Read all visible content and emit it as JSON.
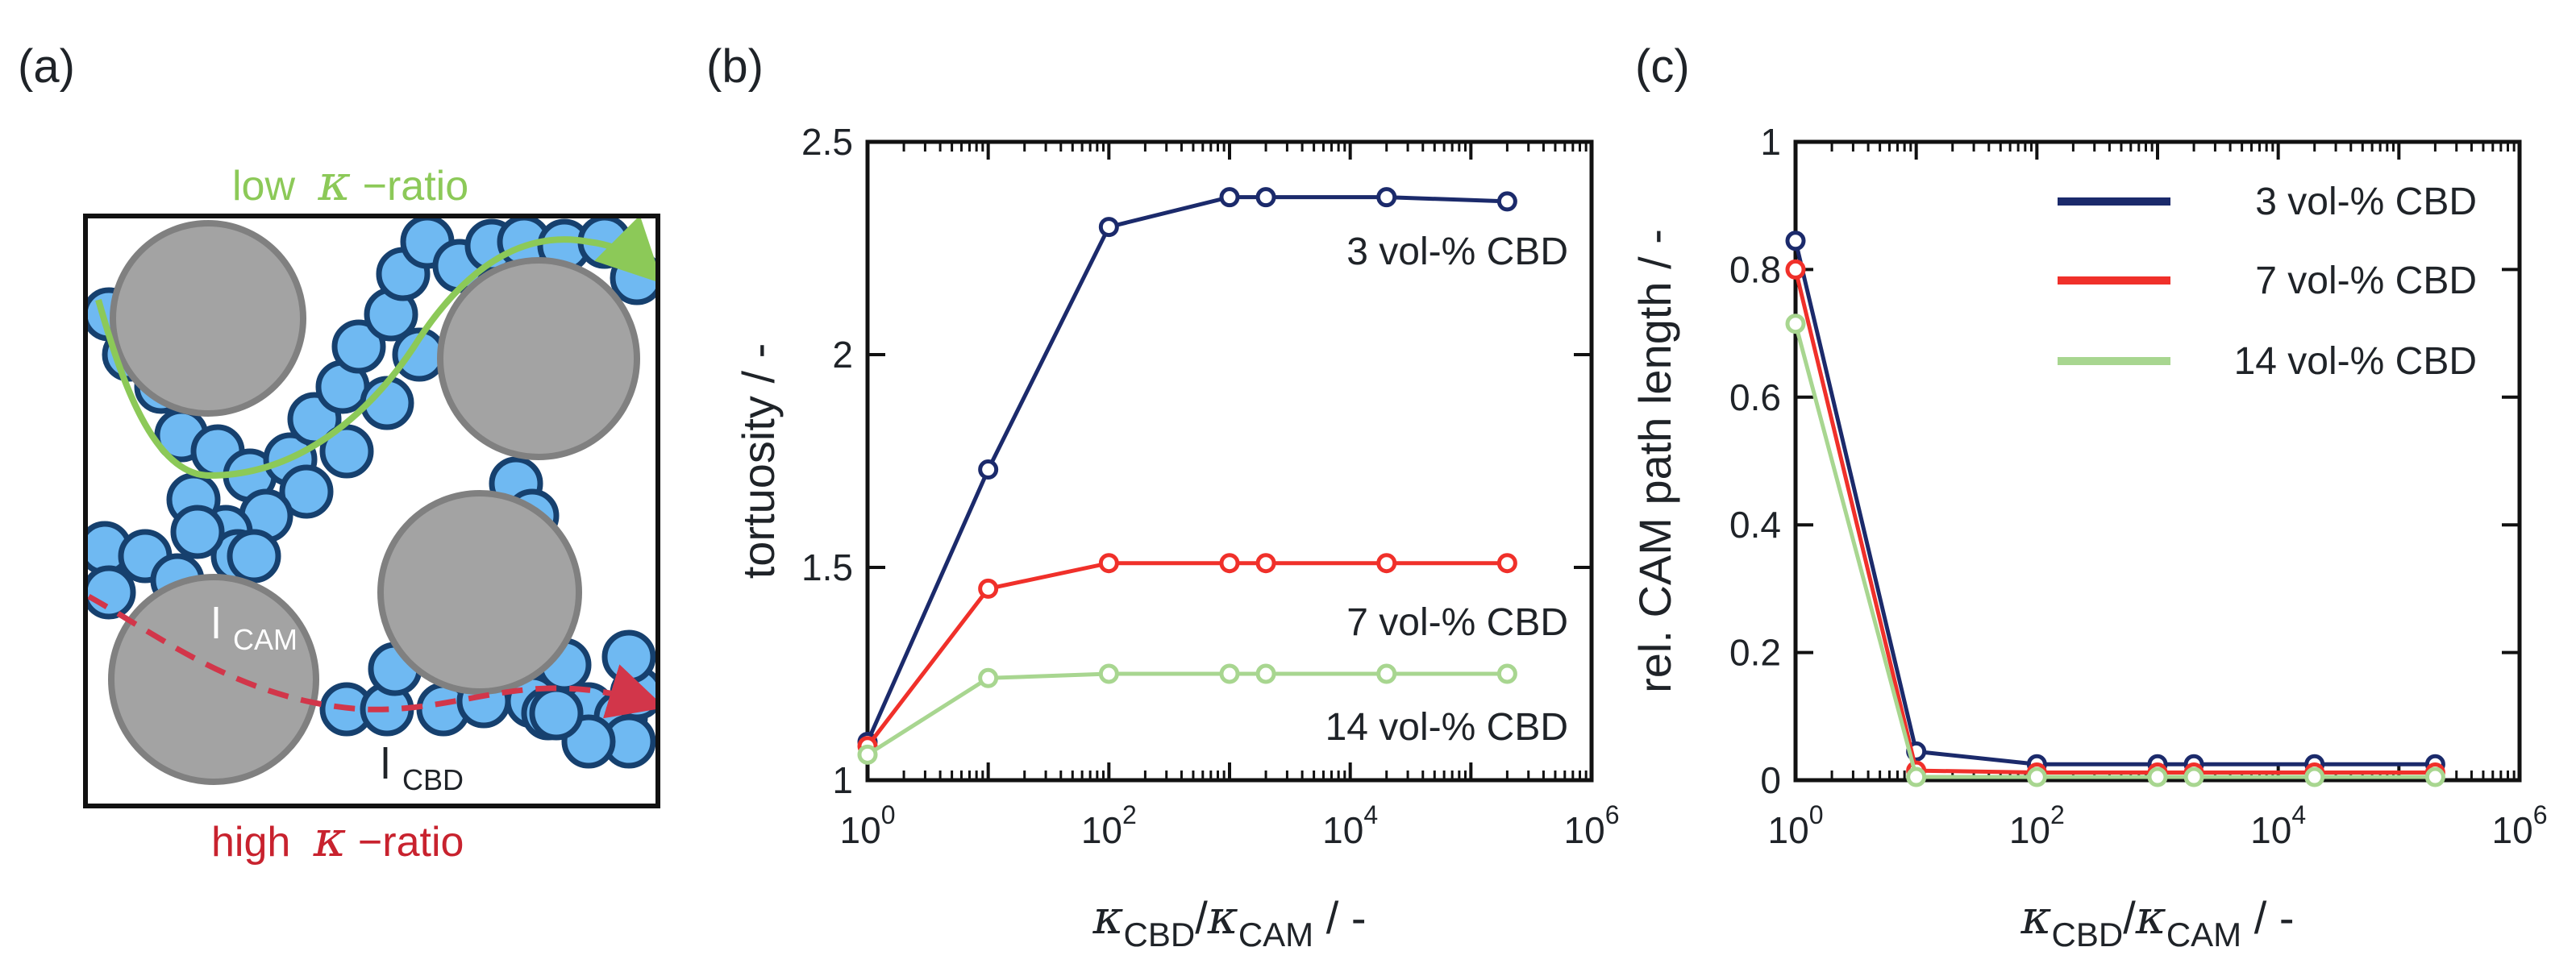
{
  "panels": {
    "a": {
      "letter": "(a)",
      "low_prefix": "low",
      "high_prefix": "high",
      "kappa_symbol": "κ",
      "ratio_suffix": " −ratio",
      "l_cam_base": "l",
      "l_cam_sub": "CAM",
      "l_cbd_base": "l",
      "l_cbd_sub": "CBD",
      "colors": {
        "particle_fill": "#6fb9f2",
        "particle_stroke": "#16406e",
        "cam_fill": "#a3a3a3",
        "cam_stroke": "#808080",
        "low_path": "#8cc958",
        "high_path": "#d2364a"
      }
    },
    "b": {
      "letter": "(b)"
    },
    "c": {
      "letter": "(c)"
    }
  },
  "chart_data": [
    {
      "type": "line",
      "panel": "b",
      "x_scale": "log",
      "xlim": [
        1,
        1000000
      ],
      "ylim": [
        1,
        2.5
      ],
      "x": [
        1,
        10,
        100,
        1000,
        2000,
        20000,
        200000
      ],
      "xticks": [
        {
          "base": "10",
          "exp": "0"
        },
        {
          "base": "10",
          "exp": "2"
        },
        {
          "base": "10",
          "exp": "4"
        },
        {
          "base": "10",
          "exp": "6"
        }
      ],
      "xtick_values": [
        1,
        100,
        10000,
        1000000
      ],
      "yticks": [
        "1",
        "1.5",
        "2",
        "2.5"
      ],
      "ytick_values": [
        1,
        1.5,
        2,
        2.5
      ],
      "ylabel": "tortuosity / -",
      "xlabel": {
        "k1": "κ",
        "s1": "CBD",
        "mid": "/",
        "k2": "κ",
        "s2": "CAM",
        "tail": " / -"
      },
      "series": [
        {
          "name": "3 vol-% CBD",
          "color": "#1b2a6b",
          "values": [
            1.09,
            1.73,
            2.3,
            2.37,
            2.37,
            2.37,
            2.36
          ]
        },
        {
          "name": "7 vol-% CBD",
          "color": "#f0302a",
          "values": [
            1.08,
            1.45,
            1.51,
            1.51,
            1.51,
            1.51,
            1.51
          ]
        },
        {
          "name": "14 vol-% CBD",
          "color": "#a8d690",
          "values": [
            1.06,
            1.24,
            1.25,
            1.25,
            1.25,
            1.25,
            1.25
          ]
        }
      ],
      "annotations": [
        "3 vol-% CBD",
        "7 vol-% CBD",
        "14 vol-% CBD"
      ]
    },
    {
      "type": "line",
      "panel": "c",
      "x_scale": "log",
      "xlim": [
        1,
        1000000
      ],
      "ylim": [
        0,
        1
      ],
      "x": [
        1,
        10,
        100,
        1000,
        2000,
        20000,
        200000
      ],
      "xticks": [
        {
          "base": "10",
          "exp": "0"
        },
        {
          "base": "10",
          "exp": "2"
        },
        {
          "base": "10",
          "exp": "4"
        },
        {
          "base": "10",
          "exp": "6"
        }
      ],
      "xtick_values": [
        1,
        100,
        10000,
        1000000
      ],
      "yticks": [
        "0",
        "0.2",
        "0.4",
        "0.6",
        "0.8",
        "1"
      ],
      "ytick_values": [
        0,
        0.2,
        0.4,
        0.6,
        0.8,
        1
      ],
      "ylabel": "rel. CAM path length / -",
      "xlabel": {
        "k1": "κ",
        "s1": "CBD",
        "mid": "/",
        "k2": "κ",
        "s2": "CAM",
        "tail": " / -"
      },
      "legend_position": "top-right",
      "series": [
        {
          "name": "3 vol-% CBD",
          "color": "#1b2a6b",
          "values": [
            0.845,
            0.045,
            0.025,
            0.025,
            0.025,
            0.025,
            0.025
          ]
        },
        {
          "name": "7 vol-% CBD",
          "color": "#f0302a",
          "values": [
            0.8,
            0.015,
            0.012,
            0.012,
            0.012,
            0.012,
            0.012
          ]
        },
        {
          "name": "14 vol-% CBD",
          "color": "#a8d690",
          "values": [
            0.715,
            0.005,
            0.005,
            0.005,
            0.005,
            0.005,
            0.005
          ]
        }
      ]
    }
  ]
}
